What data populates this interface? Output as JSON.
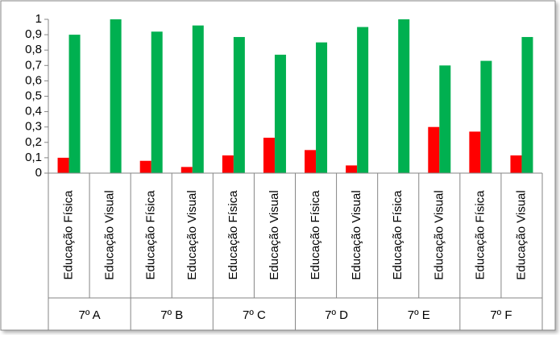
{
  "chart_data": {
    "type": "bar",
    "groups": [
      "7º A",
      "7º B",
      "7º C",
      "7º D",
      "7º E",
      "7º F"
    ],
    "categories": [
      "Educação Física",
      "Educação Visual",
      "Educação Física",
      "Educação Visual",
      "Educação Física",
      "Educação Visual",
      "Educação Física",
      "Educação Visual",
      "Educação Física",
      "Educação Visual",
      "Educação Física",
      "Educação Visual"
    ],
    "series": [
      {
        "color": "#ff0000",
        "values": [
          0.1,
          0,
          0.08,
          0.04,
          0.115,
          0.23,
          0.15,
          0.05,
          0,
          0.3,
          0.27,
          0.115
        ]
      },
      {
        "color": "#00b050",
        "values": [
          0.9,
          1,
          0.92,
          0.96,
          0.885,
          0.77,
          0.85,
          0.95,
          1,
          0.7,
          0.73,
          0.885
        ]
      }
    ],
    "ylim": [
      0,
      1
    ],
    "yticks": [
      0,
      {
        "value": 0.1,
        "label": "0,1"
      },
      {
        "value": 0.2,
        "label": "0,2"
      },
      {
        "value": 0.3,
        "label": "0,3"
      },
      {
        "value": 0.4,
        "label": "0,4"
      },
      {
        "value": 0.5,
        "label": "0,5"
      },
      {
        "value": 0.6,
        "label": "0,6"
      },
      {
        "value": 0.7,
        "label": "0,7"
      },
      {
        "value": 0.8,
        "label": "0,8"
      },
      {
        "value": 0.9,
        "label": "0,9"
      },
      1
    ],
    "grid": false
  }
}
